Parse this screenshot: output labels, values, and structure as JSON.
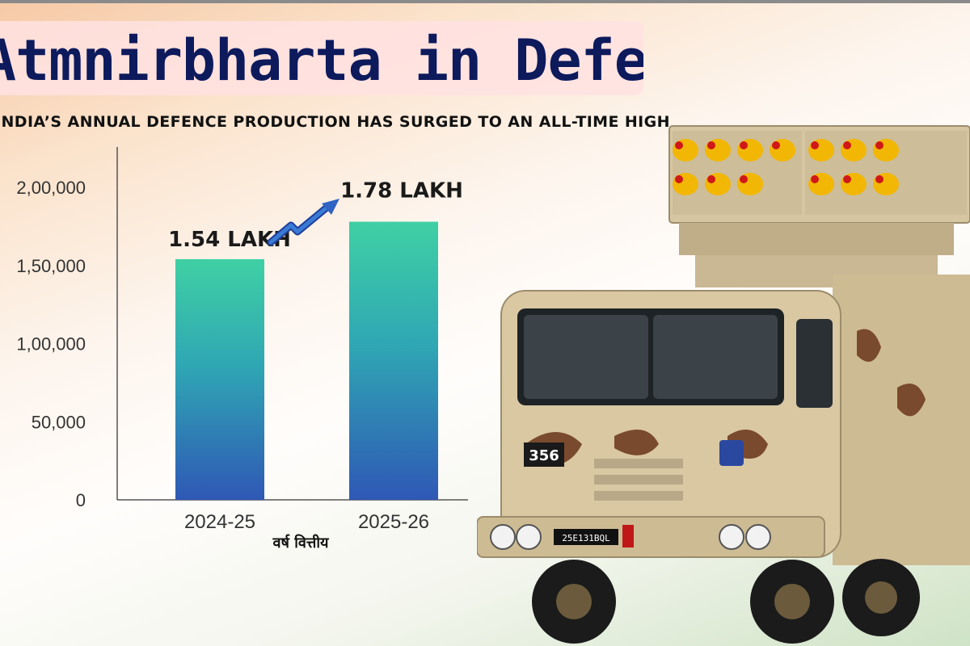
{
  "header": {
    "title": "Atmnirbharta in Defence",
    "subtitle": "India’s annual defence production has surged to an all-time high"
  },
  "colors": {
    "title": "#0d1a5c",
    "bar_top": "#3fd0a4",
    "bar_bottom": "#2f58b5",
    "arrow": "#3a7bd5"
  },
  "truck": {
    "front_number": "356",
    "plate": "25E131BQL"
  },
  "chart_data": {
    "type": "bar",
    "categories": [
      "2024-25",
      "2025-26"
    ],
    "values": [
      154000,
      178000
    ],
    "data_labels": [
      "1.54 LAKH",
      "1.78 LAKH"
    ],
    "xlabel": "वर्ष वित्तीय",
    "ylabel": "",
    "yticks": [
      "0",
      "50,000",
      "1,00,000",
      "1,50,000",
      "2,00,000"
    ],
    "ytick_values": [
      0,
      50000,
      100000,
      150000,
      200000
    ],
    "ylim": [
      0,
      200000
    ],
    "grid": false,
    "legend": "none"
  }
}
